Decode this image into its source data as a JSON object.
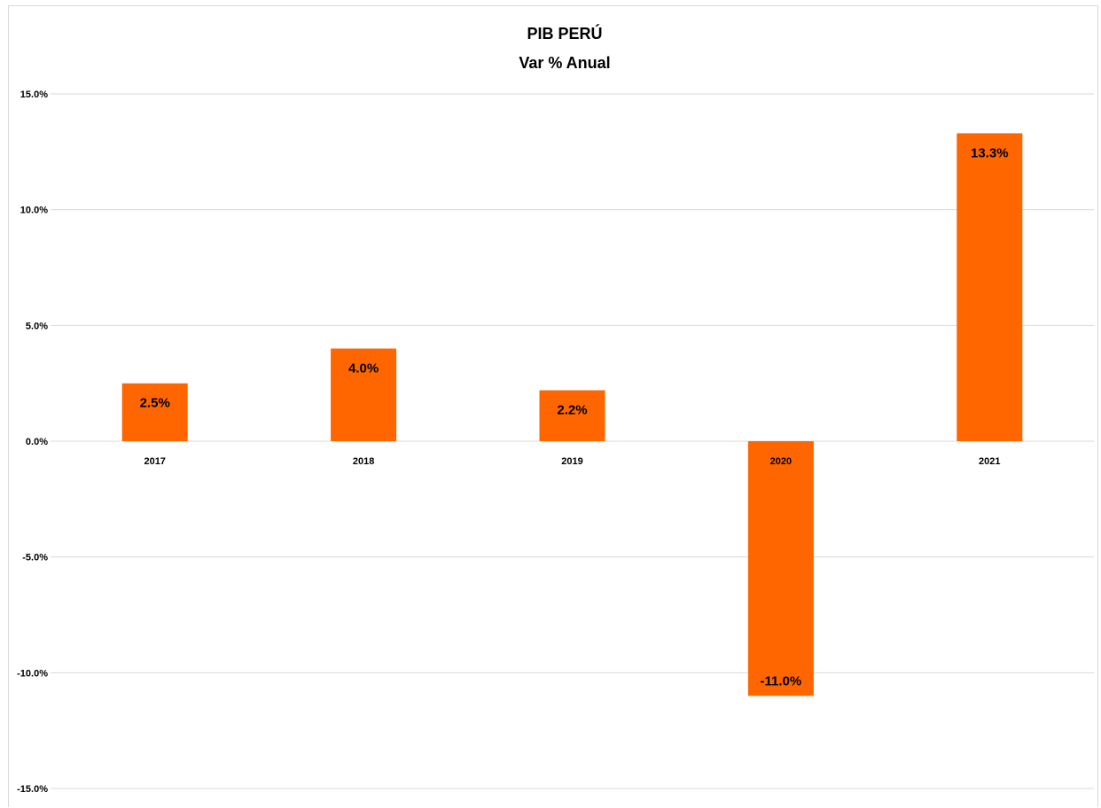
{
  "chart_data": {
    "type": "bar",
    "title": "PIB PERÚ",
    "subtitle": "Var % Anual",
    "xlabel": "",
    "ylabel": "",
    "categories": [
      "2017",
      "2018",
      "2019",
      "2020",
      "2021"
    ],
    "values": [
      2.5,
      4.0,
      2.2,
      -11.0,
      13.3
    ],
    "data_labels": [
      "2.5%",
      "4.0%",
      "2.2%",
      "-11.0%",
      "13.3%"
    ],
    "ylim": [
      -15,
      15
    ],
    "yticks": [
      15,
      10,
      5,
      0,
      -5,
      -10,
      -15
    ],
    "ytick_labels": [
      "15.0%",
      "10.0%",
      "5.0%",
      "0.0%",
      "-5.0%",
      "-10.0%",
      "-15.0%"
    ],
    "grid": true,
    "legend": "none",
    "colors": {
      "bar": "#ff6600",
      "grid": "#d9d9d9",
      "text": "#000000"
    }
  }
}
